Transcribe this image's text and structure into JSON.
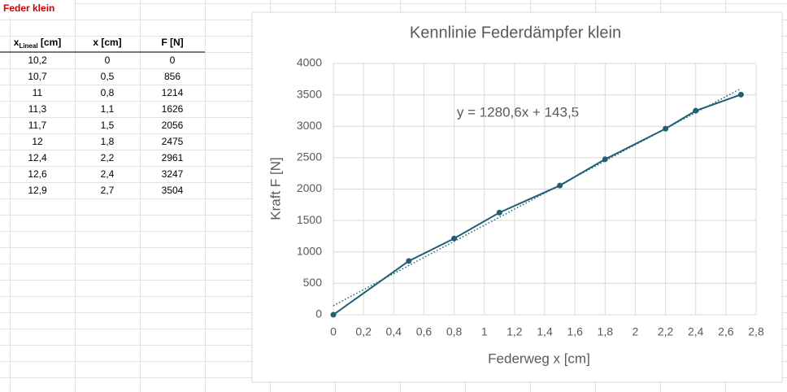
{
  "sheet_title": "Feder klein",
  "table": {
    "header": [
      [
        "x",
        "Lineal",
        " [cm]"
      ],
      [
        "x [cm]"
      ],
      [
        "F [N]"
      ]
    ],
    "rows": [
      [
        "10,2",
        "0",
        "0"
      ],
      [
        "10,7",
        "0,5",
        "856"
      ],
      [
        "11",
        "0,8",
        "1214"
      ],
      [
        "11,3",
        "1,1",
        "1626"
      ],
      [
        "11,7",
        "1,5",
        "2056"
      ],
      [
        "12",
        "1,8",
        "2475"
      ],
      [
        "12,4",
        "2,2",
        "2961"
      ],
      [
        "12,6",
        "2,4",
        "3247"
      ],
      [
        "12,9",
        "2,7",
        "3504"
      ]
    ]
  },
  "chart_data": {
    "type": "line",
    "title": "Kennlinie Federdämpfer klein",
    "x_label": "Federweg x [cm]",
    "y_label": "Kraft F [N]",
    "x": [
      0,
      0.5,
      0.8,
      1.1,
      1.5,
      1.8,
      2.2,
      2.4,
      2.7
    ],
    "series": [
      {
        "name": "F [N]",
        "color": "#215f75",
        "values": [
          0,
          856,
          1214,
          1626,
          2056,
          2475,
          2961,
          3247,
          3504
        ]
      }
    ],
    "trendline": {
      "label": "y = 1280,6x + 143,5",
      "slope": 1280.6,
      "intercept": 143.5
    },
    "xlim": [
      0,
      2.8
    ],
    "xticks": [
      0,
      {
        "value": 0.2,
        "label": "0,2"
      },
      {
        "value": 0.4,
        "label": "0,4"
      },
      {
        "value": 0.6,
        "label": "0,6"
      },
      {
        "value": 0.8,
        "label": "0,8"
      },
      1,
      {
        "value": 1.2,
        "label": "1,2"
      },
      {
        "value": 1.4,
        "label": "1,4"
      },
      {
        "value": 1.6,
        "label": "1,6"
      },
      {
        "value": 1.8,
        "label": "1,8"
      },
      2,
      {
        "value": 2.2,
        "label": "2,2"
      },
      {
        "value": 2.4,
        "label": "2,4"
      },
      {
        "value": 2.6,
        "label": "2,6"
      },
      {
        "value": 2.8,
        "label": "2,8"
      }
    ],
    "ylim": [
      0,
      4000
    ],
    "yticks": [
      0,
      500,
      1000,
      1500,
      2000,
      2500,
      3000,
      3500,
      4000
    ],
    "grid": true
  }
}
